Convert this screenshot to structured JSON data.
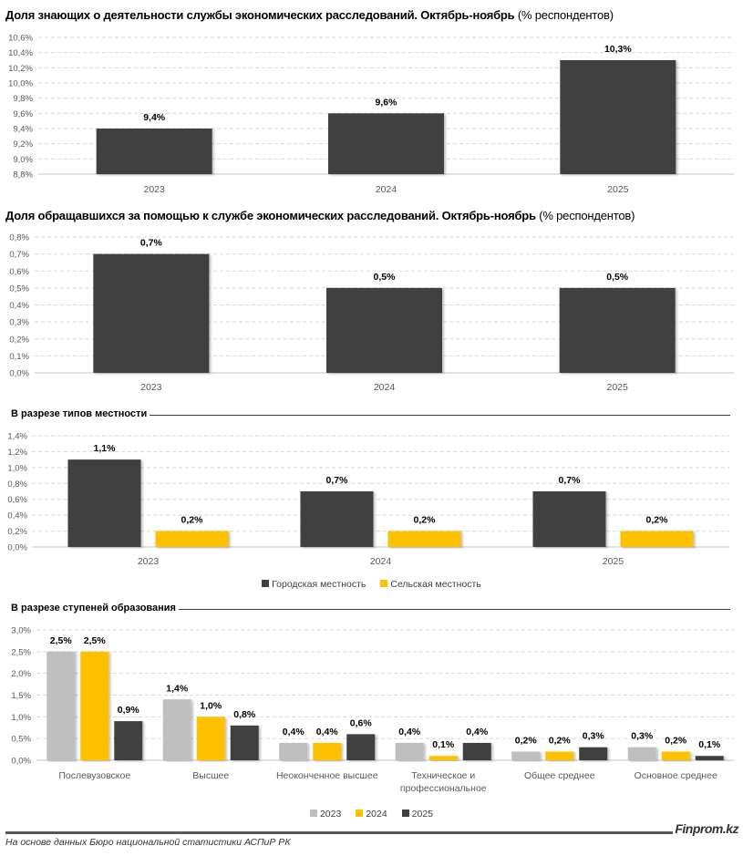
{
  "colors": {
    "dark": "#404040",
    "yellow": "#FFC000",
    "gray": "#BFBFBF",
    "grid": "#D9D9D9",
    "axis": "#D0D0D0",
    "tick": "#595959"
  },
  "chart_data": [
    {
      "id": "awareness",
      "type": "bar",
      "title": "Доля знающих о деятельности службы экономических расследований. Октябрь-ноябрь",
      "title_suffix": "(% респондентов)",
      "categories": [
        "2023",
        "2024",
        "2025"
      ],
      "values": [
        9.4,
        9.6,
        10.3
      ],
      "value_labels": [
        "9,4%",
        "9,6%",
        "10,3%"
      ],
      "ylim": [
        8.8,
        10.6
      ],
      "yticks": [
        8.8,
        9.0,
        9.2,
        9.4,
        9.6,
        9.8,
        10.0,
        10.2,
        10.4,
        10.6
      ],
      "ytick_labels": [
        "8,8%",
        "9,0%",
        "9,2%",
        "9,4%",
        "9,6%",
        "9,8%",
        "10,0%",
        "10,2%",
        "10,4%",
        "10,6%"
      ],
      "grid": true,
      "xlabel": "",
      "ylabel": ""
    },
    {
      "id": "appeal",
      "type": "bar",
      "title": "Доля обращавшихся за помощью к службе экономических расследований. Октябрь-ноябрь",
      "title_suffix": "(% респондентов)",
      "categories": [
        "2023",
        "2024",
        "2025"
      ],
      "values": [
        0.7,
        0.5,
        0.5
      ],
      "value_labels": [
        "0,7%",
        "0,5%",
        "0,5%"
      ],
      "ylim": [
        0.0,
        0.8
      ],
      "yticks": [
        0.0,
        0.1,
        0.2,
        0.3,
        0.4,
        0.5,
        0.6,
        0.7,
        0.8
      ],
      "ytick_labels": [
        "0,0%",
        "0,1%",
        "0,2%",
        "0,3%",
        "0,4%",
        "0,5%",
        "0,6%",
        "0,7%",
        "0,8%"
      ],
      "grid": true,
      "xlabel": "",
      "ylabel": ""
    },
    {
      "id": "locality",
      "type": "bar",
      "title": "В разрезе типов местности",
      "categories": [
        "2023",
        "2024",
        "2025"
      ],
      "series": [
        {
          "name": "Городская местность",
          "color": "#404040",
          "values": [
            1.1,
            0.7,
            0.7
          ],
          "value_labels": [
            "1,1%",
            "0,7%",
            "0,7%"
          ]
        },
        {
          "name": "Сельская местность",
          "color": "#FFC000",
          "values": [
            0.2,
            0.2,
            0.2
          ],
          "value_labels": [
            "0,2%",
            "0,2%",
            "0,2%"
          ]
        }
      ],
      "ylim": [
        0.0,
        1.4
      ],
      "yticks": [
        0.0,
        0.2,
        0.4,
        0.6,
        0.8,
        1.0,
        1.2,
        1.4
      ],
      "ytick_labels": [
        "0,0%",
        "0,2%",
        "0,4%",
        "0,6%",
        "0,8%",
        "1,0%",
        "1,2%",
        "1,4%"
      ],
      "grid": true,
      "legend": "bottom"
    },
    {
      "id": "education",
      "type": "bar",
      "title": "В разрезе ступеней образования",
      "categories": [
        "Послевузовское",
        "Высшее",
        "Неоконченное высшее",
        "Техническое и профессиональное",
        "Общее среднее",
        "Основное среднее"
      ],
      "category_lines": [
        [
          "Послевузовское"
        ],
        [
          "Высшее"
        ],
        [
          "Неоконченное высшее"
        ],
        [
          "Техническое и",
          "профессиональное"
        ],
        [
          "Общее среднее"
        ],
        [
          "Основное среднее"
        ]
      ],
      "series": [
        {
          "name": "2023",
          "color": "#BFBFBF",
          "values": [
            2.5,
            1.4,
            0.4,
            0.4,
            0.2,
            0.3
          ],
          "value_labels": [
            "2,5%",
            "1,4%",
            "0,4%",
            "0,4%",
            "0,2%",
            "0,3%"
          ]
        },
        {
          "name": "2024",
          "color": "#FFC000",
          "values": [
            2.5,
            1.0,
            0.4,
            0.1,
            0.2,
            0.2
          ],
          "value_labels": [
            "2,5%",
            "1,0%",
            "0,4%",
            "0,1%",
            "0,2%",
            "0,2%"
          ]
        },
        {
          "name": "2025",
          "color": "#404040",
          "values": [
            0.9,
            0.8,
            0.6,
            0.4,
            0.3,
            0.1
          ],
          "value_labels": [
            "0,9%",
            "0,8%",
            "0,6%",
            "0,4%",
            "0,3%",
            "0,1%"
          ]
        }
      ],
      "ylim": [
        0.0,
        3.0
      ],
      "yticks": [
        0.0,
        0.5,
        1.0,
        1.5,
        2.0,
        2.5,
        3.0
      ],
      "ytick_labels": [
        "0,0%",
        "0,5%",
        "1,0%",
        "1,5%",
        "2,0%",
        "2,5%",
        "3,0%"
      ],
      "grid": true,
      "legend": "bottom"
    }
  ],
  "legends": {
    "locality": [
      {
        "label": "Городская местность",
        "color": "#404040"
      },
      {
        "label": "Сельская местность",
        "color": "#FFC000"
      }
    ],
    "education": [
      {
        "label": "2023",
        "color": "#BFBFBF"
      },
      {
        "label": "2024",
        "color": "#FFC000"
      },
      {
        "label": "2025",
        "color": "#404040"
      }
    ]
  },
  "footer": {
    "source": "На основе данных Бюро национальной статистики АСПиР РК",
    "brand": "Finprom.kz"
  }
}
